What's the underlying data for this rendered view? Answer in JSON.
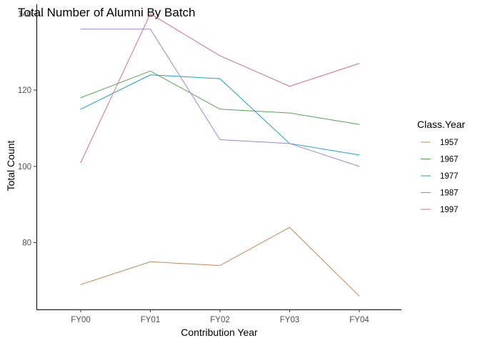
{
  "chart_data": {
    "type": "line",
    "title": "Total Number of Alumni By Batch",
    "xlabel": "Contribution Year",
    "ylabel": "Total Count",
    "categories": [
      "FY00",
      "FY01",
      "FY02",
      "FY03",
      "FY04"
    ],
    "ylim": [
      62.5,
      142.5
    ],
    "yticks": [
      80,
      100,
      120,
      140
    ],
    "grid": false,
    "legend": {
      "title": "Class.Year",
      "position": "right"
    },
    "series": [
      {
        "name": "1957",
        "color": "#c3875a",
        "values": [
          69,
          75,
          74,
          84,
          66
        ]
      },
      {
        "name": "1967",
        "color": "#5aa355",
        "values": [
          118,
          125,
          115,
          114,
          111
        ]
      },
      {
        "name": "1977",
        "color": "#1f9fbf",
        "values": [
          115,
          124,
          123,
          106,
          103
        ]
      },
      {
        "name": "1987",
        "color": "#9f86cf",
        "values": [
          136,
          136,
          107,
          106,
          100
        ]
      },
      {
        "name": "1997",
        "color": "#d06f90",
        "values": [
          101,
          140,
          129,
          121,
          127
        ]
      }
    ]
  }
}
